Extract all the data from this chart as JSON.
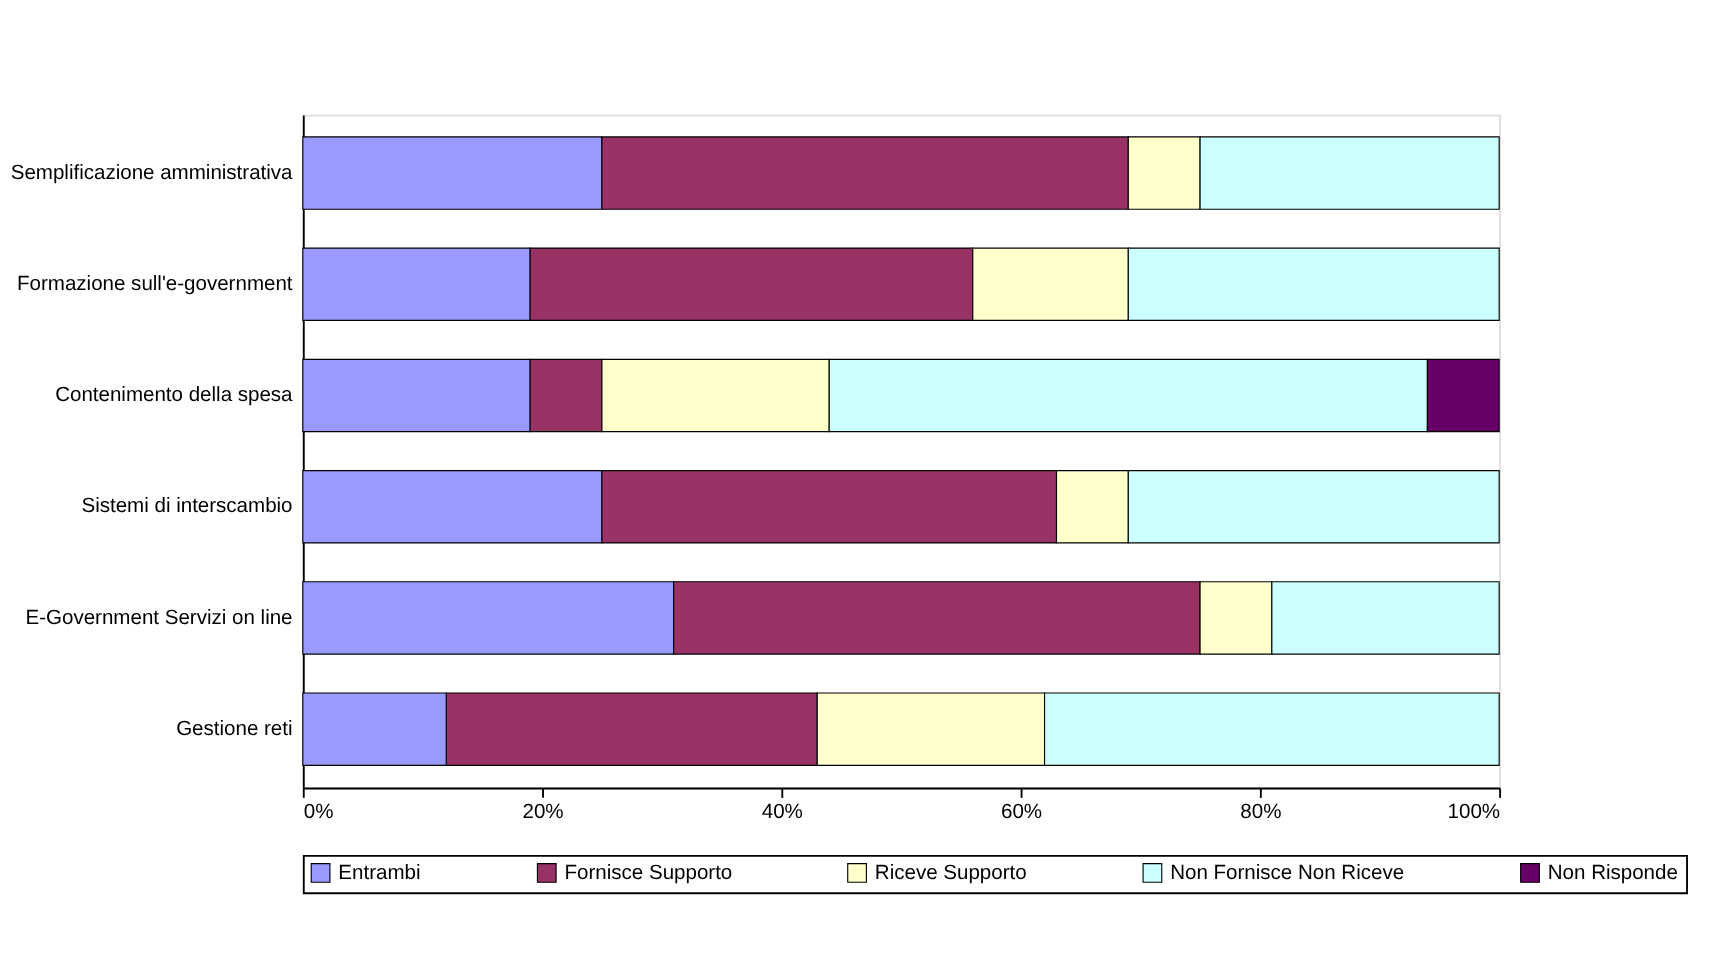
{
  "chart_data": {
    "type": "bar",
    "orientation": "horizontal",
    "stacked": true,
    "categories": [
      "Semplificazione amministrativa",
      "Formazione sull'e-government",
      "Contenimento della spesa",
      "Sistemi di interscambio",
      "E-Government Servizi on line",
      "Gestione reti"
    ],
    "series": [
      {
        "name": "Entrambi",
        "color": "#9999ff",
        "values": [
          25,
          19,
          19,
          25,
          31,
          12
        ]
      },
      {
        "name": "Fornisce Supporto",
        "color": "#993366",
        "values": [
          44,
          37,
          6,
          38,
          44,
          31
        ]
      },
      {
        "name": "Riceve Supporto",
        "color": "#ffffcc",
        "values": [
          6,
          13,
          19,
          6,
          6,
          19
        ]
      },
      {
        "name": "Non Fornisce Non Riceve",
        "color": "#ccffff",
        "values": [
          25,
          31,
          50,
          31,
          19,
          38
        ]
      },
      {
        "name": "Non Risponde",
        "color": "#660066",
        "values": [
          null,
          null,
          6,
          null,
          null,
          null
        ]
      }
    ],
    "xlim": [
      0,
      100
    ],
    "xticks": [
      {
        "value": 0,
        "label": "0%"
      },
      {
        "value": 20,
        "label": "20%"
      },
      {
        "value": 40,
        "label": "40%"
      },
      {
        "value": 60,
        "label": "60%"
      },
      {
        "value": 80,
        "label": "80%"
      },
      {
        "value": 100,
        "label": "100%"
      }
    ],
    "grid": false,
    "legend": "bottom"
  }
}
